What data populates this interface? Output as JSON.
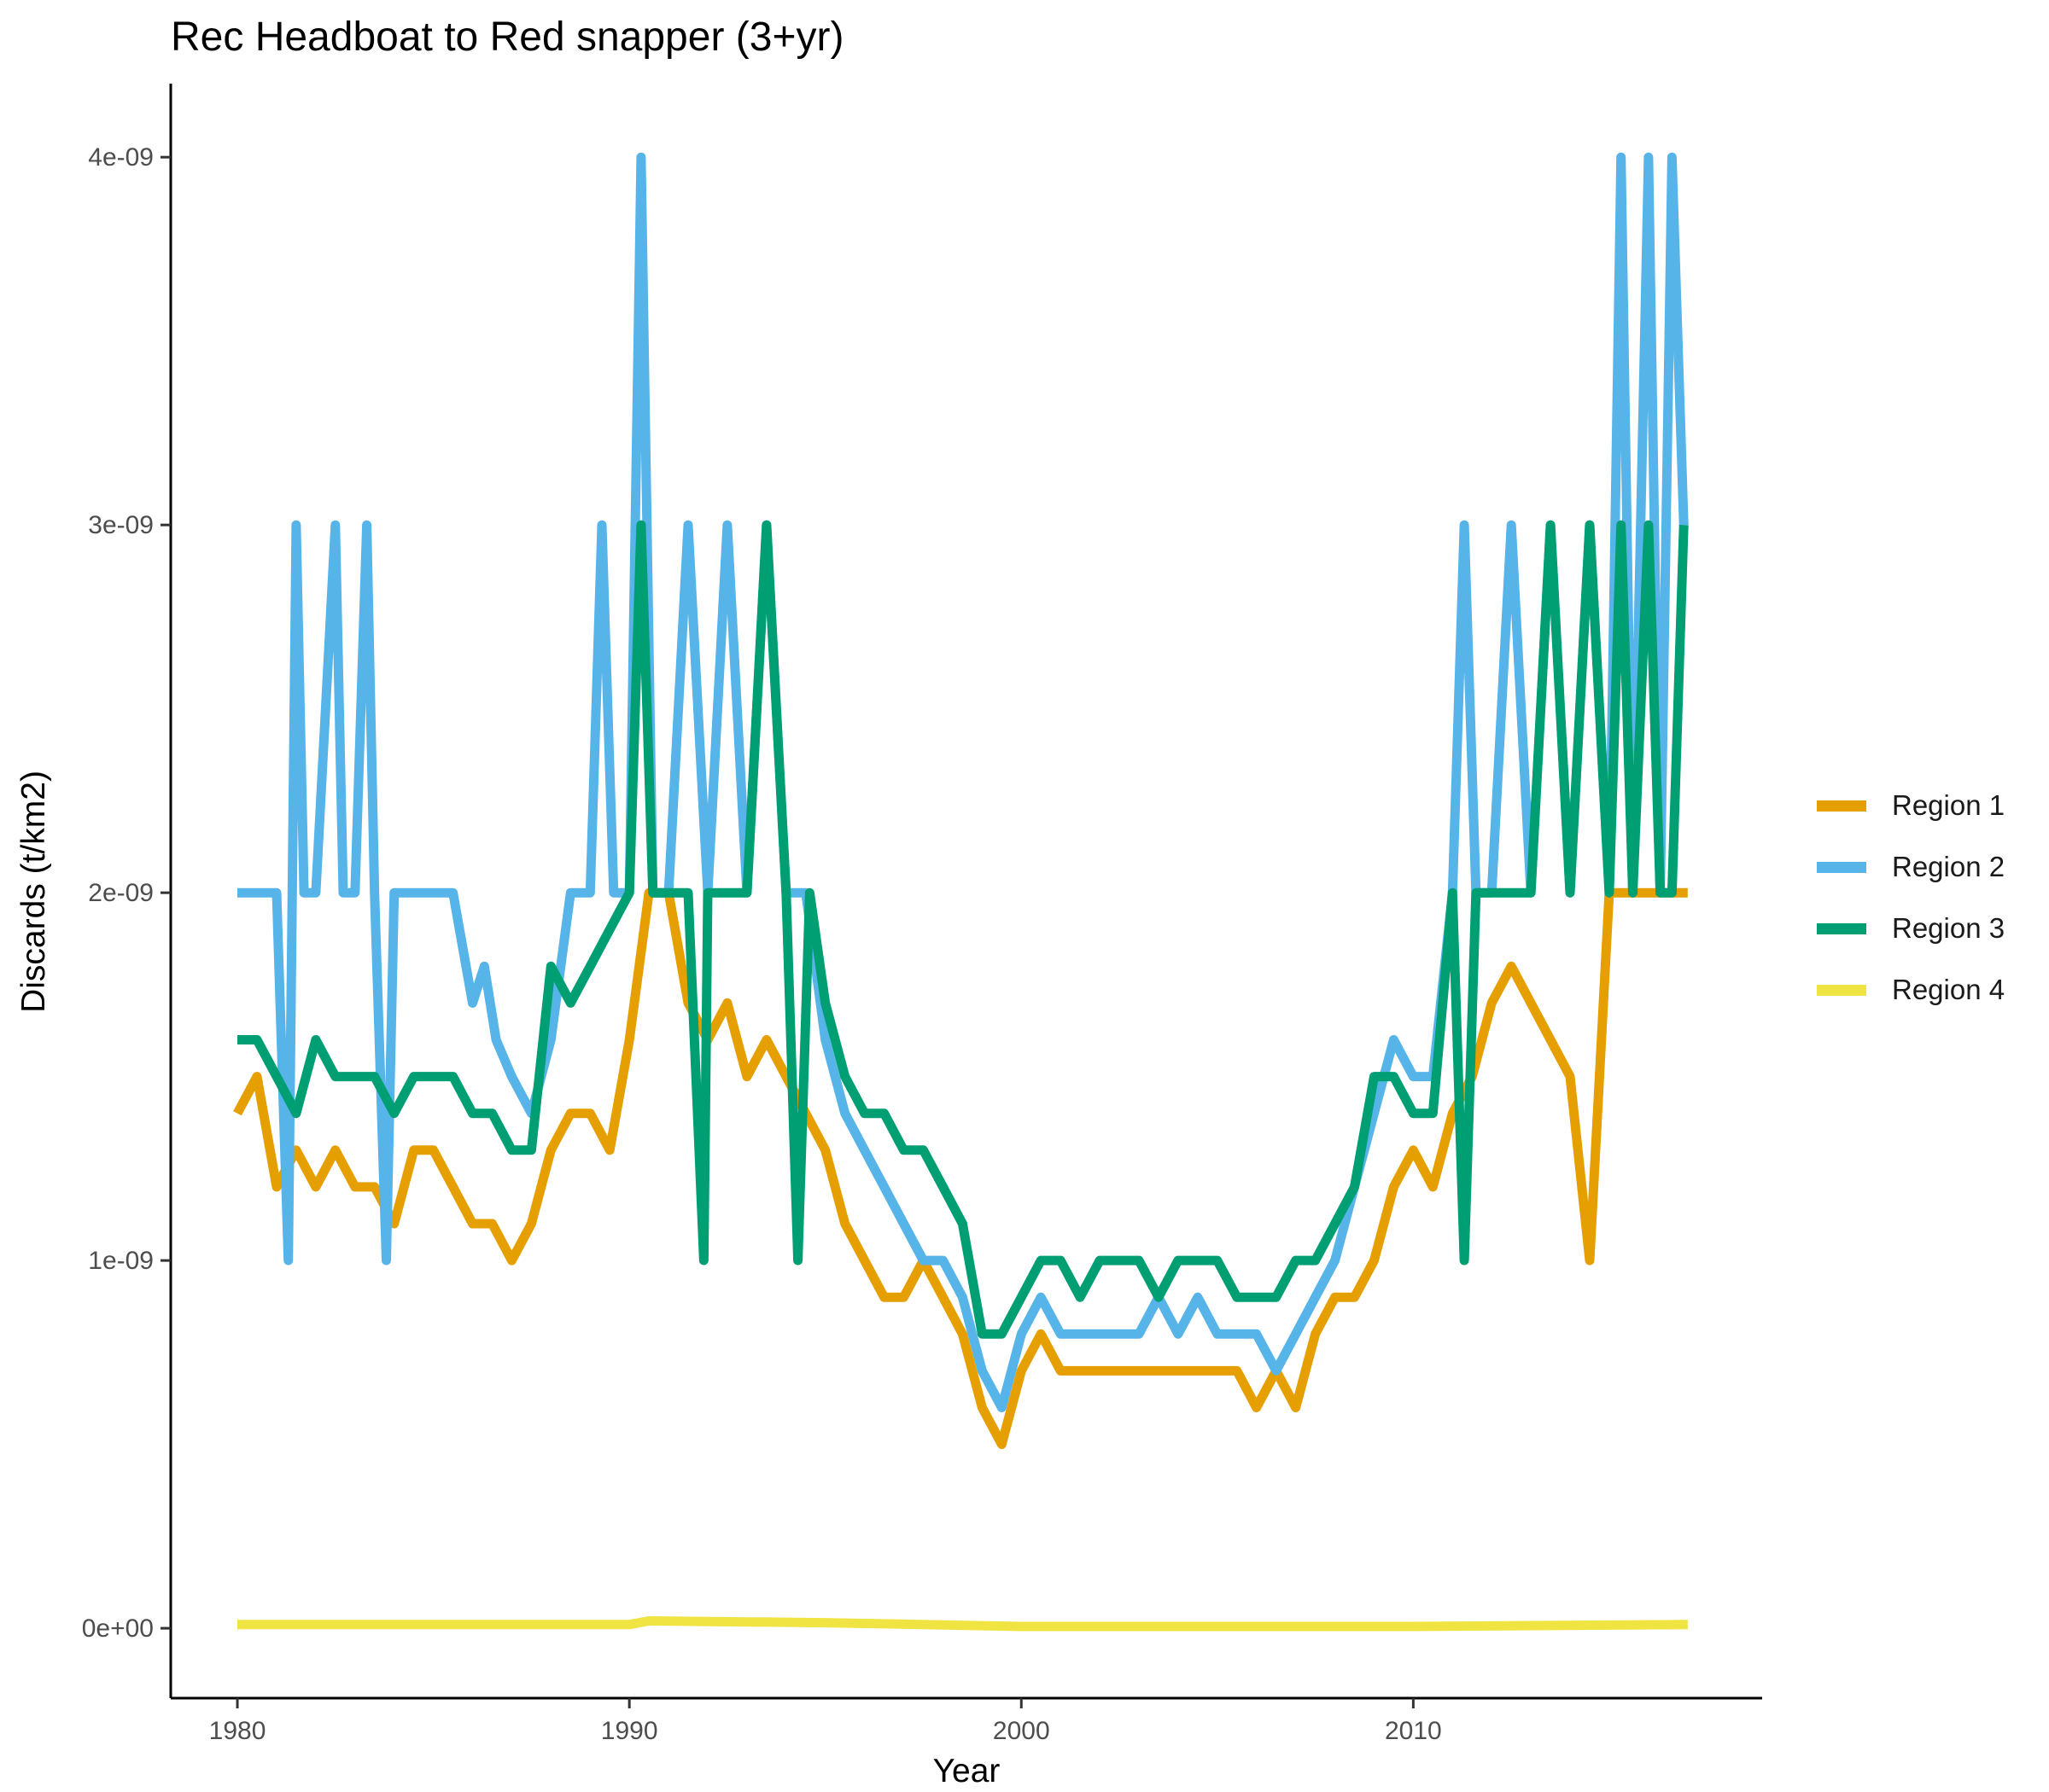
{
  "chart_data": {
    "type": "line",
    "title": "Rec Headboat to Red snapper (3+yr)",
    "xlabel": "Year",
    "ylabel": "Discards (t/km2)",
    "xlim": [
      1978.3,
      2018.9
    ],
    "ylim": [
      -1.9e-10,
      4.2e-09
    ],
    "x_ticks": [
      1980,
      1990,
      2000,
      2010
    ],
    "x_tick_labels": [
      "1980",
      "1990",
      "2000",
      "2010"
    ],
    "y_ticks": [
      0,
      1e-09,
      2e-09,
      3e-09,
      4e-09
    ],
    "y_tick_labels": [
      "0e+00",
      "1e-09",
      "2e-09",
      "3e-09",
      "4e-09"
    ],
    "grid": false,
    "legend_position": "right",
    "series": [
      {
        "name": "Region 1",
        "color": "#E69F00",
        "x": [
          1980.0,
          1980.5,
          1981.0,
          1981.5,
          1982.0,
          1982.5,
          1983.0,
          1983.5,
          1984.0,
          1984.5,
          1985.0,
          1985.5,
          1986.0,
          1986.5,
          1987.0,
          1987.5,
          1988.0,
          1988.5,
          1989.0,
          1989.5,
          1990.0,
          1990.5,
          1991.0,
          1991.5,
          1992.0,
          1992.5,
          1993.0,
          1993.5,
          1994.0,
          1994.5,
          1995.0,
          1995.5,
          1996.0,
          1996.5,
          1997.0,
          1997.5,
          1998.0,
          1998.5,
          1999.0,
          1999.5,
          2000.0,
          2000.5,
          2001.0,
          2001.5,
          2002.0,
          2002.5,
          2003.0,
          2003.5,
          2004.0,
          2004.5,
          2005.0,
          2005.5,
          2006.0,
          2006.5,
          2007.0,
          2007.5,
          2008.0,
          2008.5,
          2009.0,
          2009.5,
          2010.0,
          2010.5,
          2011.0,
          2011.5,
          2012.0,
          2012.5,
          2013.0,
          2013.5,
          2014.0,
          2014.5,
          2015.0,
          2015.5,
          2016.0,
          2016.5,
          2017.0
        ],
        "y": [
          1.4e-09,
          1.5e-09,
          1.2e-09,
          1.3e-09,
          1.2e-09,
          1.3e-09,
          1.2e-09,
          1.2e-09,
          1.1e-09,
          1.3e-09,
          1.3e-09,
          1.2e-09,
          1.1e-09,
          1.1e-09,
          1e-09,
          1.1e-09,
          1.3e-09,
          1.4e-09,
          1.4e-09,
          1.3e-09,
          1.6e-09,
          2e-09,
          2e-09,
          1.7e-09,
          1.6e-09,
          1.7e-09,
          1.5e-09,
          1.6e-09,
          1.5e-09,
          1.4e-09,
          1.3e-09,
          1.1e-09,
          1e-09,
          9e-10,
          9e-10,
          1e-09,
          9e-10,
          8e-10,
          6e-10,
          5e-10,
          7e-10,
          8e-10,
          7e-10,
          7e-10,
          7e-10,
          7e-10,
          7e-10,
          7e-10,
          7e-10,
          7e-10,
          7e-10,
          7e-10,
          6e-10,
          7e-10,
          6e-10,
          8e-10,
          9e-10,
          9e-10,
          1e-09,
          1.2e-09,
          1.3e-09,
          1.2e-09,
          1.4e-09,
          1.5e-09,
          1.7e-09,
          1.8e-09,
          1.7e-09,
          1.6e-09,
          1.5e-09,
          1e-09,
          2e-09,
          2e-09,
          2e-09,
          2e-09,
          2e-09
        ]
      },
      {
        "name": "Region 2",
        "color": "#56B4E9",
        "x": [
          1980.0,
          1981.0,
          1981.3,
          1981.5,
          1981.7,
          1982.0,
          1982.5,
          1982.7,
          1983.0,
          1983.3,
          1983.5,
          1983.8,
          1984.0,
          1984.5,
          1985.0,
          1985.5,
          1986.0,
          1986.3,
          1986.6,
          1987.0,
          1987.5,
          1988.0,
          1988.5,
          1989.0,
          1989.3,
          1989.6,
          1990.0,
          1990.3,
          1990.6,
          1991.0,
          1991.5,
          1992.0,
          1992.5,
          1993.0,
          1993.5,
          1994.0,
          1994.5,
          1995.0,
          1995.5,
          1996.0,
          1996.5,
          1997.0,
          1997.5,
          1998.0,
          1998.5,
          1999.0,
          1999.5,
          2000.0,
          2000.5,
          2001.0,
          2001.5,
          2002.0,
          2002.5,
          2003.0,
          2003.5,
          2004.0,
          2004.5,
          2005.0,
          2005.5,
          2006.0,
          2006.5,
          2007.0,
          2007.5,
          2008.0,
          2008.5,
          2009.0,
          2009.5,
          2010.0,
          2010.5,
          2011.0,
          2011.3,
          2011.6,
          2012.0,
          2012.5,
          2013.0,
          2013.5,
          2014.0,
          2014.5,
          2015.0,
          2015.3,
          2015.6,
          2016.0,
          2016.3,
          2016.6,
          2016.9
        ],
        "y": [
          2e-09,
          2e-09,
          1e-09,
          3e-09,
          2e-09,
          2e-09,
          3e-09,
          2e-09,
          2e-09,
          3e-09,
          2e-09,
          1e-09,
          2e-09,
          2e-09,
          2e-09,
          2e-09,
          1.7e-09,
          1.8e-09,
          1.6e-09,
          1.5e-09,
          1.4e-09,
          1.6e-09,
          2e-09,
          2e-09,
          3e-09,
          2e-09,
          2e-09,
          4e-09,
          2e-09,
          2e-09,
          3e-09,
          2e-09,
          3e-09,
          2e-09,
          3e-09,
          2e-09,
          2e-09,
          1.6e-09,
          1.4e-09,
          1.3e-09,
          1.2e-09,
          1.1e-09,
          1e-09,
          1e-09,
          9e-10,
          7e-10,
          6e-10,
          8e-10,
          9e-10,
          8e-10,
          8e-10,
          8e-10,
          8e-10,
          8e-10,
          9e-10,
          8e-10,
          9e-10,
          8e-10,
          8e-10,
          8e-10,
          7e-10,
          8e-10,
          9e-10,
          1e-09,
          1.2e-09,
          1.4e-09,
          1.6e-09,
          1.5e-09,
          1.5e-09,
          2e-09,
          3e-09,
          2e-09,
          2e-09,
          3e-09,
          2e-09,
          3e-09,
          2e-09,
          3e-09,
          2e-09,
          4e-09,
          2e-09,
          4e-09,
          2e-09,
          4e-09,
          3e-09
        ]
      },
      {
        "name": "Region 3",
        "color": "#009E73",
        "x": [
          1980.0,
          1980.5,
          1981.0,
          1981.5,
          1982.0,
          1982.5,
          1983.0,
          1983.5,
          1984.0,
          1984.5,
          1985.0,
          1985.5,
          1986.0,
          1986.5,
          1987.0,
          1987.5,
          1988.0,
          1988.5,
          1989.0,
          1989.5,
          1990.0,
          1990.3,
          1990.6,
          1991.0,
          1991.5,
          1991.9,
          1992.0,
          1992.5,
          1993.0,
          1993.5,
          1994.0,
          1994.3,
          1994.6,
          1995.0,
          1995.5,
          1996.0,
          1996.5,
          1997.0,
          1997.5,
          1998.0,
          1998.5,
          1999.0,
          1999.5,
          2000.0,
          2000.5,
          2001.0,
          2001.5,
          2002.0,
          2002.5,
          2003.0,
          2003.5,
          2004.0,
          2004.5,
          2005.0,
          2005.5,
          2006.0,
          2006.5,
          2007.0,
          2007.5,
          2008.0,
          2008.5,
          2009.0,
          2009.5,
          2010.0,
          2010.5,
          2011.0,
          2011.3,
          2011.6,
          2012.0,
          2012.5,
          2013.0,
          2013.5,
          2014.0,
          2014.5,
          2015.0,
          2015.3,
          2015.6,
          2016.0,
          2016.3,
          2016.6,
          2016.9
        ],
        "y": [
          1.6e-09,
          1.6e-09,
          1.5e-09,
          1.4e-09,
          1.6e-09,
          1.5e-09,
          1.5e-09,
          1.5e-09,
          1.4e-09,
          1.5e-09,
          1.5e-09,
          1.5e-09,
          1.4e-09,
          1.4e-09,
          1.3e-09,
          1.3e-09,
          1.8e-09,
          1.7e-09,
          1.8e-09,
          1.9e-09,
          2e-09,
          3e-09,
          2e-09,
          2e-09,
          2e-09,
          1e-09,
          2e-09,
          2e-09,
          2e-09,
          3e-09,
          2e-09,
          1e-09,
          2e-09,
          1.7e-09,
          1.5e-09,
          1.4e-09,
          1.4e-09,
          1.3e-09,
          1.3e-09,
          1.2e-09,
          1.1e-09,
          8e-10,
          8e-10,
          9e-10,
          1e-09,
          1e-09,
          9e-10,
          1e-09,
          1e-09,
          1e-09,
          9e-10,
          1e-09,
          1e-09,
          1e-09,
          9e-10,
          9e-10,
          9e-10,
          1e-09,
          1e-09,
          1.1e-09,
          1.2e-09,
          1.5e-09,
          1.5e-09,
          1.4e-09,
          1.4e-09,
          2e-09,
          1e-09,
          2e-09,
          2e-09,
          2e-09,
          2e-09,
          3e-09,
          2e-09,
          3e-09,
          2e-09,
          3e-09,
          2e-09,
          3e-09,
          2e-09,
          2e-09,
          3e-09
        ]
      },
      {
        "name": "Region 4",
        "color": "#F0E442",
        "x": [
          1980.0,
          1985.0,
          1990.0,
          1990.5,
          1995.0,
          2000.0,
          2005.0,
          2010.0,
          2017.0
        ],
        "y": [
          1e-11,
          1e-11,
          1e-11,
          2e-11,
          1.5e-11,
          5e-12,
          5e-12,
          5e-12,
          1e-11
        ]
      }
    ]
  }
}
